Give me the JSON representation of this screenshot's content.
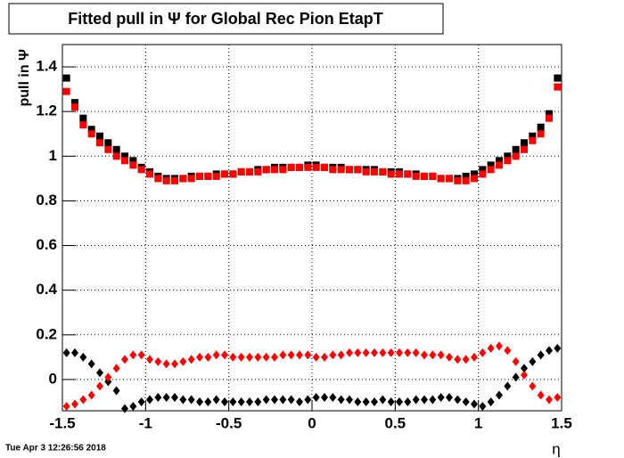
{
  "chart_data": {
    "type": "scatter",
    "title": "Fitted pull in  Ψ  for Global Rec Pion EtapT",
    "y_label": "pull in  Ψ",
    "x_label": "η",
    "timestamp": "Tue Apr  3 12:26:56 2018",
    "x": [
      -1.475,
      -1.425,
      -1.375,
      -1.325,
      -1.275,
      -1.225,
      -1.175,
      -1.125,
      -1.075,
      -1.025,
      -0.975,
      -0.925,
      -0.875,
      -0.825,
      -0.775,
      -0.725,
      -0.675,
      -0.625,
      -0.575,
      -0.525,
      -0.475,
      -0.425,
      -0.375,
      -0.325,
      -0.275,
      -0.225,
      -0.175,
      -0.125,
      -0.075,
      -0.025,
      0.025,
      0.075,
      0.125,
      0.175,
      0.225,
      0.275,
      0.325,
      0.375,
      0.425,
      0.475,
      0.525,
      0.575,
      0.625,
      0.675,
      0.725,
      0.775,
      0.825,
      0.875,
      0.925,
      0.975,
      1.025,
      1.075,
      1.125,
      1.175,
      1.225,
      1.275,
      1.325,
      1.375,
      1.425,
      1.475
    ],
    "series": [
      {
        "color": "#000000",
        "marker": "square",
        "values": [
          1.35,
          1.24,
          1.17,
          1.12,
          1.09,
          1.06,
          1.03,
          1.0,
          0.98,
          0.95,
          0.93,
          0.91,
          0.9,
          0.9,
          0.9,
          0.91,
          0.91,
          0.91,
          0.92,
          0.92,
          0.92,
          0.93,
          0.93,
          0.94,
          0.94,
          0.95,
          0.95,
          0.95,
          0.95,
          0.96,
          0.96,
          0.95,
          0.95,
          0.95,
          0.94,
          0.94,
          0.94,
          0.94,
          0.93,
          0.93,
          0.93,
          0.92,
          0.92,
          0.91,
          0.91,
          0.9,
          0.9,
          0.9,
          0.91,
          0.92,
          0.94,
          0.96,
          0.98,
          1.0,
          1.03,
          1.06,
          1.09,
          1.13,
          1.19,
          1.35
        ]
      },
      {
        "color": "#ff0000",
        "marker": "square",
        "values": [
          1.29,
          1.22,
          1.14,
          1.1,
          1.06,
          1.03,
          1.0,
          0.98,
          0.96,
          0.94,
          0.92,
          0.9,
          0.89,
          0.89,
          0.9,
          0.9,
          0.91,
          0.91,
          0.91,
          0.92,
          0.92,
          0.93,
          0.93,
          0.93,
          0.94,
          0.94,
          0.94,
          0.95,
          0.95,
          0.95,
          0.95,
          0.95,
          0.94,
          0.94,
          0.94,
          0.94,
          0.93,
          0.93,
          0.93,
          0.92,
          0.92,
          0.92,
          0.91,
          0.91,
          0.91,
          0.9,
          0.9,
          0.89,
          0.89,
          0.9,
          0.92,
          0.94,
          0.96,
          0.98,
          1.0,
          1.03,
          1.07,
          1.1,
          1.17,
          1.31
        ]
      },
      {
        "color": "#000000",
        "marker": "diamond",
        "values": [
          0.12,
          0.12,
          0.1,
          0.07,
          0.03,
          -0.01,
          -0.05,
          -0.13,
          -0.12,
          -0.1,
          -0.09,
          -0.08,
          -0.08,
          -0.08,
          -0.09,
          -0.09,
          -0.1,
          -0.1,
          -0.09,
          -0.1,
          -0.1,
          -0.1,
          -0.1,
          -0.1,
          -0.09,
          -0.09,
          -0.09,
          -0.09,
          -0.1,
          -0.09,
          -0.08,
          -0.08,
          -0.08,
          -0.09,
          -0.09,
          -0.1,
          -0.1,
          -0.1,
          -0.09,
          -0.1,
          -0.1,
          -0.1,
          -0.09,
          -0.09,
          -0.09,
          -0.08,
          -0.08,
          -0.09,
          -0.1,
          -0.11,
          -0.12,
          -0.1,
          -0.07,
          -0.03,
          0.01,
          0.05,
          0.08,
          0.11,
          0.13,
          0.14
        ]
      },
      {
        "color": "#ff0000",
        "marker": "diamond",
        "values": [
          -0.12,
          -0.11,
          -0.09,
          -0.07,
          -0.03,
          0.01,
          0.05,
          0.09,
          0.11,
          0.11,
          0.09,
          0.08,
          0.07,
          0.07,
          0.08,
          0.09,
          0.1,
          0.1,
          0.11,
          0.11,
          0.1,
          0.1,
          0.1,
          0.1,
          0.1,
          0.1,
          0.11,
          0.11,
          0.11,
          0.11,
          0.1,
          0.1,
          0.11,
          0.11,
          0.12,
          0.12,
          0.12,
          0.12,
          0.12,
          0.12,
          0.12,
          0.12,
          0.12,
          0.11,
          0.11,
          0.11,
          0.1,
          0.09,
          0.09,
          0.1,
          0.12,
          0.14,
          0.15,
          0.13,
          0.08,
          0.02,
          -0.03,
          -0.07,
          -0.09,
          -0.08
        ]
      }
    ],
    "xlim": [
      -1.5,
      1.5
    ],
    "xticks": [
      -1.5,
      -1,
      -0.5,
      0,
      0.5,
      1,
      1.5
    ],
    "ylim": [
      -0.14,
      1.5
    ],
    "yticks": [
      0,
      0.2,
      0.4,
      0.6,
      0.8,
      1,
      1.2,
      1.4
    ],
    "grid": true
  }
}
